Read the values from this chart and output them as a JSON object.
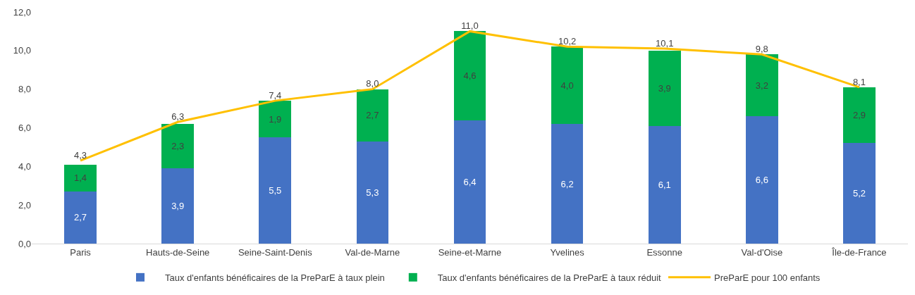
{
  "chart_data": {
    "type": "bar",
    "stacked": true,
    "legend": "bottom",
    "categories": [
      "Paris",
      "Hauts-de-Seine",
      "Seine-Saint-Denis",
      "Val-de-Marne",
      "Seine-et-Marne",
      "Yvelines",
      "Essonne",
      "Val-d'Oise",
      "Île-de-France"
    ],
    "ylim": [
      0,
      12
    ],
    "yticks": [
      {
        "value": 0,
        "label": "0,0"
      },
      {
        "value": 2,
        "label": "2,0"
      },
      {
        "value": 4,
        "label": "4,0"
      },
      {
        "value": 6,
        "label": "6,0"
      },
      {
        "value": 8,
        "label": "8,0"
      },
      {
        "value": 10,
        "label": "10,0"
      },
      {
        "value": 12,
        "label": "12,0"
      }
    ],
    "series": [
      {
        "name": "Taux d'enfants bénéficaires de la PreParE à taux plein",
        "color": "#4472c4",
        "values": [
          2.7,
          3.9,
          5.5,
          5.3,
          6.4,
          6.2,
          6.1,
          6.6,
          5.2
        ],
        "value_labels": [
          "2,7",
          "3,9",
          "5,5",
          "5,3",
          "6,4",
          "6,2",
          "6,1",
          "6,6",
          "5,2"
        ]
      },
      {
        "name": "Taux d'enfants bénéficaires de la PreParE à taux réduit",
        "color": "#00b050",
        "values": [
          1.4,
          2.3,
          1.9,
          2.7,
          4.6,
          4.0,
          3.9,
          3.2,
          2.9
        ],
        "value_labels": [
          "1,4",
          "2,3",
          "1,9",
          "2,7",
          "4,6",
          "4,0",
          "3,9",
          "3,2",
          "2,9"
        ]
      },
      {
        "name": "PreParE pour 100 enfants",
        "type": "line",
        "color": "#ffc000",
        "values": [
          4.3,
          6.3,
          7.4,
          8.0,
          11.0,
          10.2,
          10.1,
          9.8,
          8.1
        ],
        "value_labels": [
          "4,3",
          "6,3",
          "7,4",
          "8,0",
          "11,0",
          "10,2",
          "10,1",
          "9,8",
          "8,1"
        ]
      }
    ]
  }
}
